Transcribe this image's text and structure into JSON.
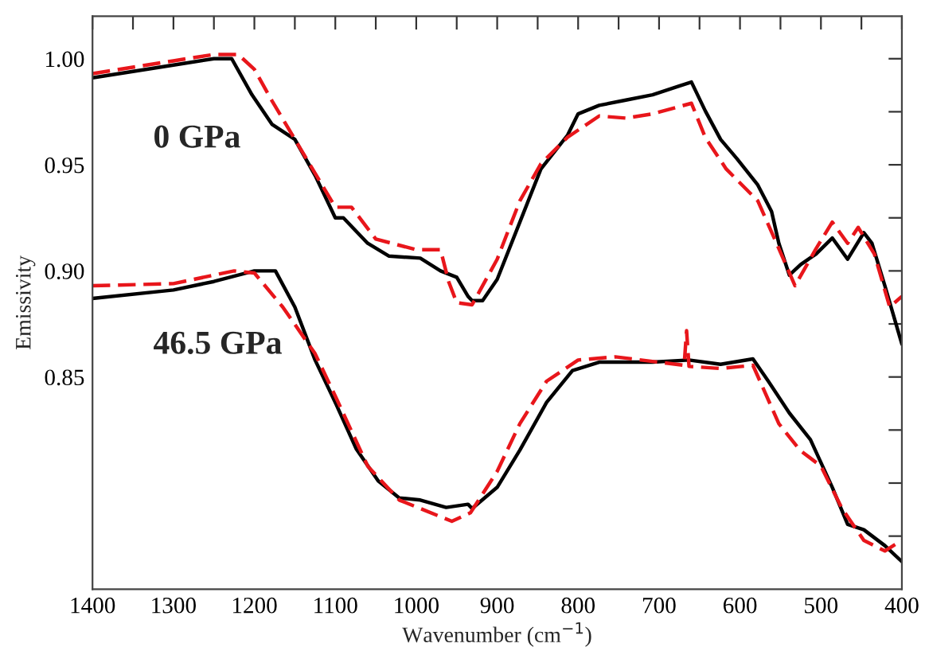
{
  "chart_data": {
    "type": "line",
    "xlabel": "Wavenumber (cm$^{−1}$)",
    "ylabel": "Emissivity",
    "xlim": [
      1400,
      400
    ],
    "ylim": [
      0.75,
      1.02
    ],
    "xticks": [
      1400,
      {
        "value": 1350,
        "label": null
      },
      1300,
      {
        "value": 1250,
        "label": null
      },
      1200,
      {
        "value": 1150,
        "label": null
      },
      1100,
      {
        "value": 1050,
        "label": null
      },
      1000,
      {
        "value": 950,
        "label": null
      },
      900,
      {
        "value": 850,
        "label": null
      },
      800,
      {
        "value": 750,
        "label": null
      },
      700,
      {
        "value": 650,
        "label": null
      },
      600,
      {
        "value": 550,
        "label": null
      },
      500,
      {
        "value": 450,
        "label": null
      },
      400
    ],
    "yticks": [
      {
        "value": 0.775,
        "label": null
      },
      {
        "value": 0.8,
        "label": null
      },
      {
        "value": 0.825,
        "label": null
      },
      {
        "value": 0.85,
        "label": "0.85"
      },
      {
        "value": 0.875,
        "label": null
      },
      {
        "value": 0.9,
        "label": "0.90"
      },
      {
        "value": 0.925,
        "label": null
      },
      {
        "value": 0.95,
        "label": "0.95"
      },
      {
        "value": 0.975,
        "label": null
      },
      {
        "value": 1.0,
        "label": "1.00"
      }
    ],
    "grid": false,
    "legend": false,
    "marker": "none",
    "annotations": [
      "0 GPa",
      "46.5 GPa"
    ],
    "series": [
      {
        "color": "#000000",
        "line_style": "solid",
        "x": [
          1400,
          1300,
          1250,
          1228,
          1203,
          1178,
          1150,
          1125,
          1100,
          1090,
          1060,
          1034,
          995,
          970,
          950,
          936,
          931,
          918,
          900,
          872,
          846,
          813,
          800,
          774,
          741,
          708,
          676,
          660,
          643,
          624,
          604,
          578,
          561,
          552,
          539,
          525,
          506,
          486,
          467,
          447,
          437,
          421,
          400
        ],
        "values": [
          0.991,
          0.997,
          1.0,
          1.0,
          0.983,
          0.969,
          0.962,
          0.945,
          0.925,
          0.925,
          0.913,
          0.907,
          0.906,
          0.9,
          0.897,
          0.888,
          0.886,
          0.886,
          0.896,
          0.923,
          0.948,
          0.964,
          0.974,
          0.978,
          0.9805,
          0.983,
          0.987,
          0.989,
          0.9755,
          0.962,
          0.953,
          0.9405,
          0.928,
          0.913,
          0.898,
          0.903,
          0.908,
          0.9155,
          0.9055,
          0.918,
          0.913,
          0.893,
          0.8655
        ]
      },
      {
        "color": "#e8161b",
        "line_style": "dashed",
        "x": [
          1400,
          1300,
          1250,
          1220,
          1200,
          1178,
          1150,
          1100,
          1080,
          1050,
          1000,
          970,
          960,
          950,
          931,
          900,
          872,
          846,
          813,
          774,
          741,
          708,
          660,
          643,
          617,
          578,
          552,
          532,
          506,
          486,
          467,
          454,
          434,
          415,
          400
        ],
        "values": [
          0.993,
          0.999,
          1.002,
          1.002,
          0.995,
          0.98,
          0.962,
          0.93,
          0.93,
          0.915,
          0.91,
          0.91,
          0.895,
          0.885,
          0.884,
          0.9055,
          0.933,
          0.9505,
          0.963,
          0.973,
          0.972,
          0.974,
          0.979,
          0.963,
          0.948,
          0.933,
          0.9105,
          0.893,
          0.9105,
          0.923,
          0.913,
          0.9205,
          0.908,
          0.883,
          0.888
        ]
      },
      {
        "color": "#000000",
        "line_style": "solid",
        "x": [
          1400,
          1300,
          1250,
          1200,
          1174,
          1150,
          1125,
          1100,
          1074,
          1047,
          1021,
          995,
          963,
          936,
          931,
          900,
          872,
          839,
          807,
          774,
          708,
          663,
          624,
          584,
          565,
          539,
          513,
          486,
          467,
          447,
          421,
          400
        ],
        "values": [
          0.887,
          0.891,
          0.895,
          0.9,
          0.9,
          0.883,
          0.858,
          0.838,
          0.816,
          0.801,
          0.793,
          0.792,
          0.7885,
          0.79,
          0.788,
          0.798,
          0.8155,
          0.838,
          0.853,
          0.857,
          0.857,
          0.858,
          0.856,
          0.8585,
          0.848,
          0.833,
          0.8205,
          0.798,
          0.7805,
          0.778,
          0.7705,
          0.763
        ]
      },
      {
        "color": "#e8161b",
        "line_style": "dashed",
        "x": [
          1400,
          1300,
          1225,
          1200,
          1165,
          1125,
          1100,
          1060,
          1021,
          956,
          933,
          900,
          872,
          839,
          800,
          754,
          669,
          666,
          663,
          624,
          584,
          552,
          526,
          500,
          474,
          447,
          421,
          400
        ],
        "values": [
          0.893,
          0.894,
          0.9,
          0.899,
          0.883,
          0.861,
          0.841,
          0.808,
          0.792,
          0.782,
          0.786,
          0.8055,
          0.828,
          0.848,
          0.858,
          0.8595,
          0.8555,
          0.8718,
          0.855,
          0.854,
          0.8555,
          0.828,
          0.8155,
          0.808,
          0.788,
          0.773,
          0.768,
          0.773
        ]
      }
    ]
  }
}
